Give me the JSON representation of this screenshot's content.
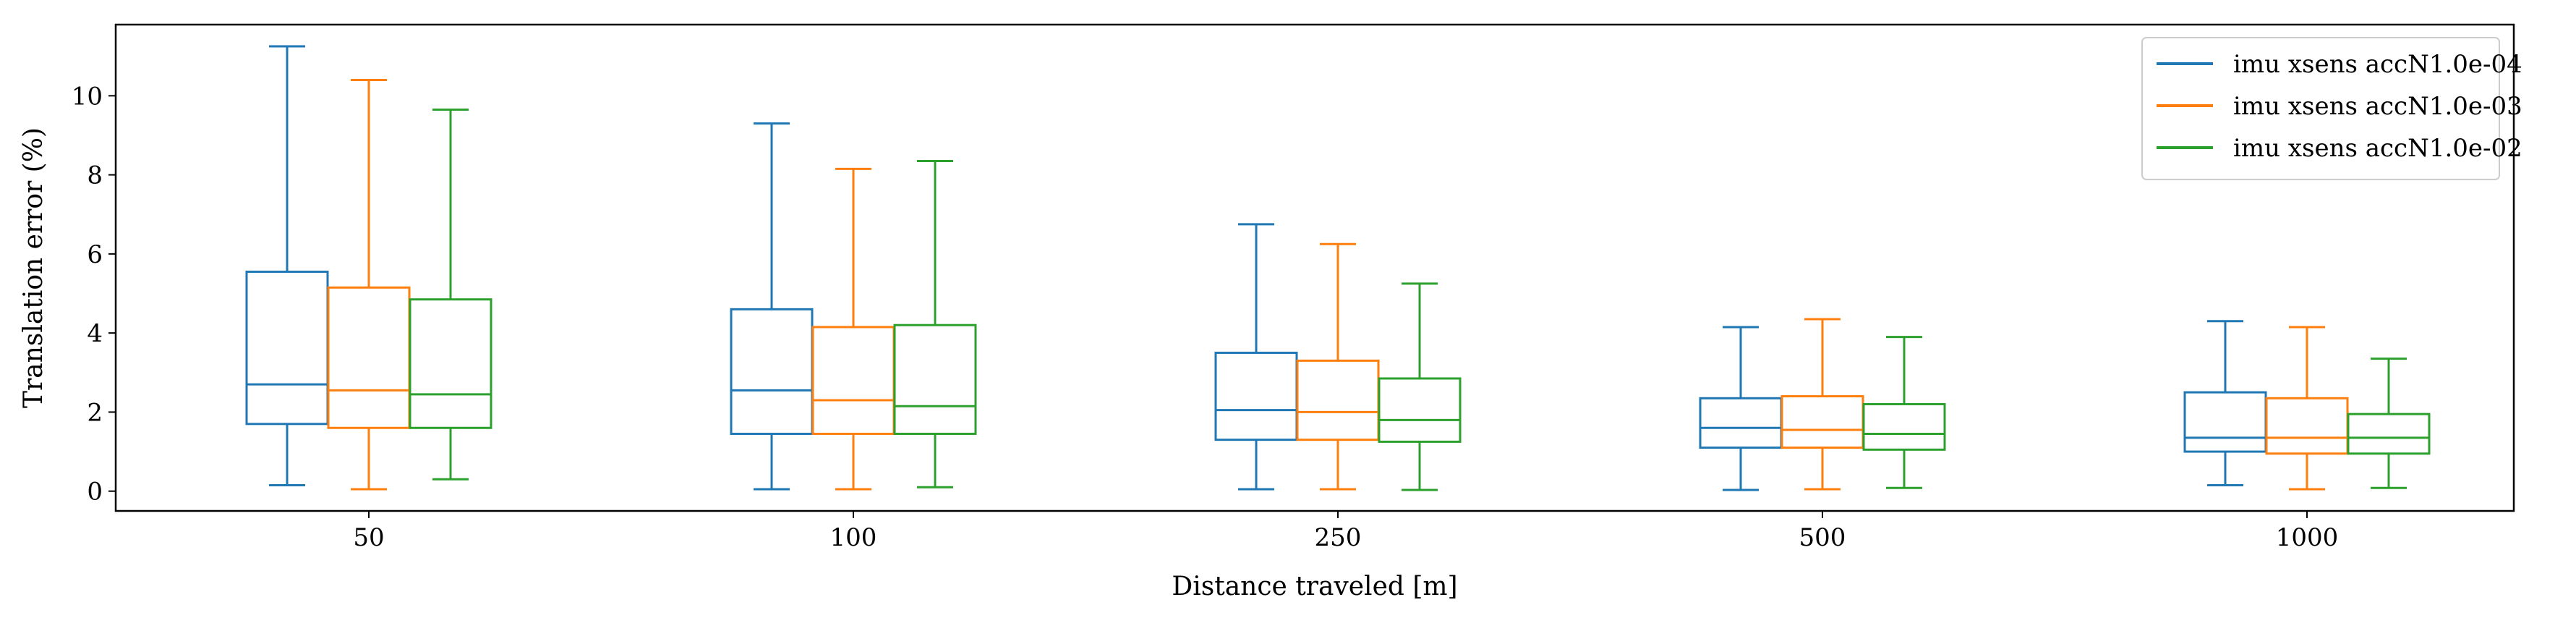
{
  "chart_data": {
    "type": "box",
    "title": "",
    "xlabel": "Distance traveled [m]",
    "ylabel": "Translation error (%)",
    "ylim": [
      -0.5,
      11.8
    ],
    "yticks": [
      0,
      2,
      4,
      6,
      8,
      10
    ],
    "grid": false,
    "legend_position": "top-right",
    "categories": [
      "50",
      "100",
      "250",
      "500",
      "1000"
    ],
    "series": [
      {
        "name": "imu xsens accN1.0e-04",
        "color": "#1f77b4",
        "boxes": [
          {
            "whislo": 0.15,
            "q1": 1.7,
            "med": 2.7,
            "q3": 5.55,
            "whishi": 11.25
          },
          {
            "whislo": 0.05,
            "q1": 1.45,
            "med": 2.55,
            "q3": 4.6,
            "whishi": 9.3
          },
          {
            "whislo": 0.05,
            "q1": 1.3,
            "med": 2.05,
            "q3": 3.5,
            "whishi": 6.75
          },
          {
            "whislo": 0.03,
            "q1": 1.1,
            "med": 1.6,
            "q3": 2.35,
            "whishi": 4.15
          },
          {
            "whislo": 0.15,
            "q1": 1.0,
            "med": 1.35,
            "q3": 2.5,
            "whishi": 4.3
          }
        ]
      },
      {
        "name": "imu xsens accN1.0e-03",
        "color": "#ff7f0e",
        "boxes": [
          {
            "whislo": 0.05,
            "q1": 1.6,
            "med": 2.55,
            "q3": 5.15,
            "whishi": 10.4
          },
          {
            "whislo": 0.05,
            "q1": 1.45,
            "med": 2.3,
            "q3": 4.15,
            "whishi": 8.15
          },
          {
            "whislo": 0.05,
            "q1": 1.3,
            "med": 2.0,
            "q3": 3.3,
            "whishi": 6.25
          },
          {
            "whislo": 0.05,
            "q1": 1.1,
            "med": 1.55,
            "q3": 2.4,
            "whishi": 4.35
          },
          {
            "whislo": 0.05,
            "q1": 0.95,
            "med": 1.35,
            "q3": 2.35,
            "whishi": 4.15
          }
        ]
      },
      {
        "name": "imu xsens accN1.0e-02",
        "color": "#2ca02c",
        "boxes": [
          {
            "whislo": 0.3,
            "q1": 1.6,
            "med": 2.45,
            "q3": 4.85,
            "whishi": 9.65
          },
          {
            "whislo": 0.1,
            "q1": 1.45,
            "med": 2.15,
            "q3": 4.2,
            "whishi": 8.35
          },
          {
            "whislo": 0.03,
            "q1": 1.25,
            "med": 1.8,
            "q3": 2.85,
            "whishi": 5.25
          },
          {
            "whislo": 0.08,
            "q1": 1.05,
            "med": 1.45,
            "q3": 2.2,
            "whishi": 3.9
          },
          {
            "whislo": 0.08,
            "q1": 0.95,
            "med": 1.35,
            "q3": 1.95,
            "whishi": 3.35
          }
        ]
      }
    ]
  }
}
